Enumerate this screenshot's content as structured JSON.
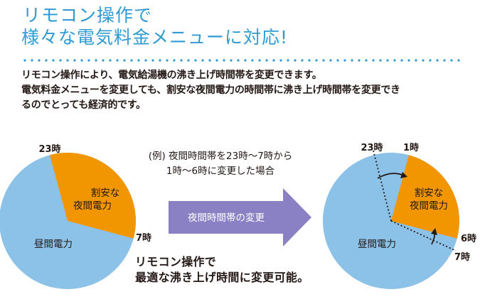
{
  "title_lines": [
    "リモコン操作で",
    "様々な電気料金メニューに対応!"
  ],
  "body_lines": [
    "リモコン操作により、電気給湯機の沸き上げ時間帯を変更できます。",
    "電気料金メニューを変更しても、割安な夜間電力の時間帯に沸き上げ時間帯を変更でき",
    "るのでとっても経済的です。"
  ],
  "note_lines": [
    "(例) 夜間時間帯を23時〜7時から",
    "1時〜6時に変更した場合"
  ],
  "arrow_label": "夜間時間帯の変更",
  "sub_lines": [
    "リモコン操作で",
    "最適な沸き上げ時間に変更可能。"
  ],
  "colors": {
    "accent": "#2f9bd3",
    "day": "#8cc1e8",
    "night": "#f29600",
    "arrow": "#8a80c4"
  },
  "left_pie": {
    "night_lines": [
      "割安な",
      "夜間電力"
    ],
    "day_label": "昼間電力",
    "label_23": "23時",
    "label_7": "7時"
  },
  "right_pie": {
    "night_lines": [
      "割安な",
      "夜間電力"
    ],
    "day_label": "昼間電力",
    "label_23": "23時",
    "label_1": "1時",
    "label_6": "6時",
    "label_7": "7時"
  }
}
